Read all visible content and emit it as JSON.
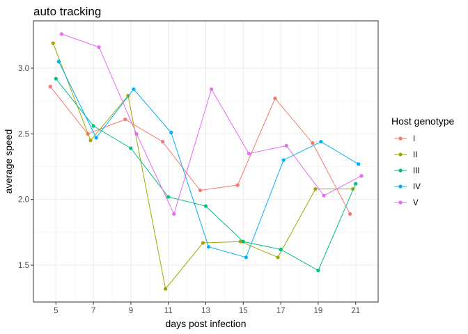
{
  "chart_data": {
    "type": "line",
    "title": "auto tracking",
    "xlabel": "days post infection",
    "ylabel": "average speed",
    "xlim": [
      3.8,
      22.2
    ],
    "ylim": [
      1.22,
      3.36
    ],
    "x_ticks": [
      5,
      7,
      9,
      11,
      13,
      15,
      17,
      19,
      21
    ],
    "y_ticks": [
      1.5,
      2.0,
      2.5,
      3.0
    ],
    "y_tick_labels": [
      "1.5",
      "2.0",
      "2.5",
      "3.0"
    ],
    "grid": true,
    "legend": {
      "title": "Host genotype",
      "position": "right"
    },
    "series": [
      {
        "name": "I",
        "color": "#F8766D",
        "points": [
          [
            4.7,
            2.86
          ],
          [
            6.7,
            2.5
          ],
          [
            8.7,
            2.61
          ],
          [
            10.7,
            2.44
          ],
          [
            12.7,
            2.07
          ],
          [
            14.7,
            2.11
          ],
          [
            16.7,
            2.77
          ],
          [
            18.7,
            2.43
          ],
          [
            20.7,
            1.89
          ]
        ]
      },
      {
        "name": "II",
        "color": "#A3A500",
        "points": [
          [
            4.85,
            3.19
          ],
          [
            6.85,
            2.45
          ],
          [
            8.85,
            2.79
          ],
          [
            10.85,
            1.32
          ],
          [
            12.85,
            1.67
          ],
          [
            14.85,
            1.68
          ],
          [
            16.85,
            1.56
          ],
          [
            18.85,
            2.08
          ],
          [
            20.85,
            2.08
          ]
        ]
      },
      {
        "name": "III",
        "color": "#00BF7D",
        "points": [
          [
            5.0,
            2.92
          ],
          [
            7.0,
            2.56
          ],
          [
            9.0,
            2.39
          ],
          [
            11.0,
            2.02
          ],
          [
            13.0,
            1.95
          ],
          [
            15.0,
            1.68
          ],
          [
            17.0,
            1.62
          ],
          [
            19.0,
            1.46
          ],
          [
            21.0,
            2.12
          ]
        ]
      },
      {
        "name": "IV",
        "color": "#00B0F6",
        "points": [
          [
            5.15,
            3.05
          ],
          [
            7.15,
            2.47
          ],
          [
            9.15,
            2.84
          ],
          [
            11.15,
            2.51
          ],
          [
            13.15,
            1.64
          ],
          [
            15.15,
            1.56
          ],
          [
            17.15,
            2.3
          ],
          [
            19.15,
            2.44
          ],
          [
            21.15,
            2.27
          ]
        ]
      },
      {
        "name": "V",
        "color": "#E76BF3",
        "points": [
          [
            5.3,
            3.26
          ],
          [
            7.3,
            3.16
          ],
          [
            9.3,
            2.5
          ],
          [
            11.3,
            1.89
          ],
          [
            13.3,
            2.84
          ],
          [
            15.3,
            2.35
          ],
          [
            17.3,
            2.41
          ],
          [
            19.3,
            2.03
          ],
          [
            21.3,
            2.18
          ]
        ]
      }
    ]
  }
}
